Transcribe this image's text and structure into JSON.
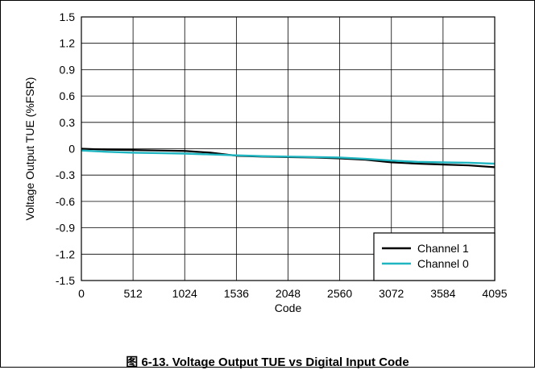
{
  "chart_data": {
    "type": "line",
    "title": "",
    "xlabel": "Code",
    "ylabel": "Voltage Output TUE (%FSR)",
    "xlim": [
      0,
      4095
    ],
    "ylim": [
      -1.5,
      1.5
    ],
    "x_ticks": [
      "0",
      "512",
      "1024",
      "1536",
      "2048",
      "2560",
      "3072",
      "3584",
      "4095"
    ],
    "y_ticks": [
      "1.5",
      "1.2",
      "0.9",
      "0.6",
      "0.3",
      "0",
      "-0.3",
      "-0.6",
      "-0.9",
      "-1.2",
      "-1.5"
    ],
    "grid": true,
    "legend_position": "bottom-right",
    "series": [
      {
        "name": "Channel 1",
        "color": "#000000",
        "x": [
          0,
          256,
          512,
          768,
          1024,
          1280,
          1536,
          1792,
          2048,
          2304,
          2560,
          2816,
          3072,
          3328,
          3584,
          3840,
          4095
        ],
        "y": [
          0.0,
          -0.01,
          -0.015,
          -0.02,
          -0.025,
          -0.045,
          -0.08,
          -0.09,
          -0.095,
          -0.1,
          -0.11,
          -0.125,
          -0.155,
          -0.17,
          -0.18,
          -0.19,
          -0.21
        ]
      },
      {
        "name": "Channel 0",
        "color": "#1fb5c1",
        "x": [
          0,
          256,
          512,
          768,
          1024,
          1280,
          1536,
          1792,
          2048,
          2304,
          2560,
          2816,
          3072,
          3328,
          3584,
          3840,
          4095
        ],
        "y": [
          -0.02,
          -0.035,
          -0.045,
          -0.05,
          -0.055,
          -0.065,
          -0.075,
          -0.085,
          -0.09,
          -0.095,
          -0.1,
          -0.115,
          -0.135,
          -0.15,
          -0.155,
          -0.16,
          -0.17
        ]
      }
    ]
  },
  "caption": "图 6-13. Voltage Output TUE vs Digital Input Code"
}
